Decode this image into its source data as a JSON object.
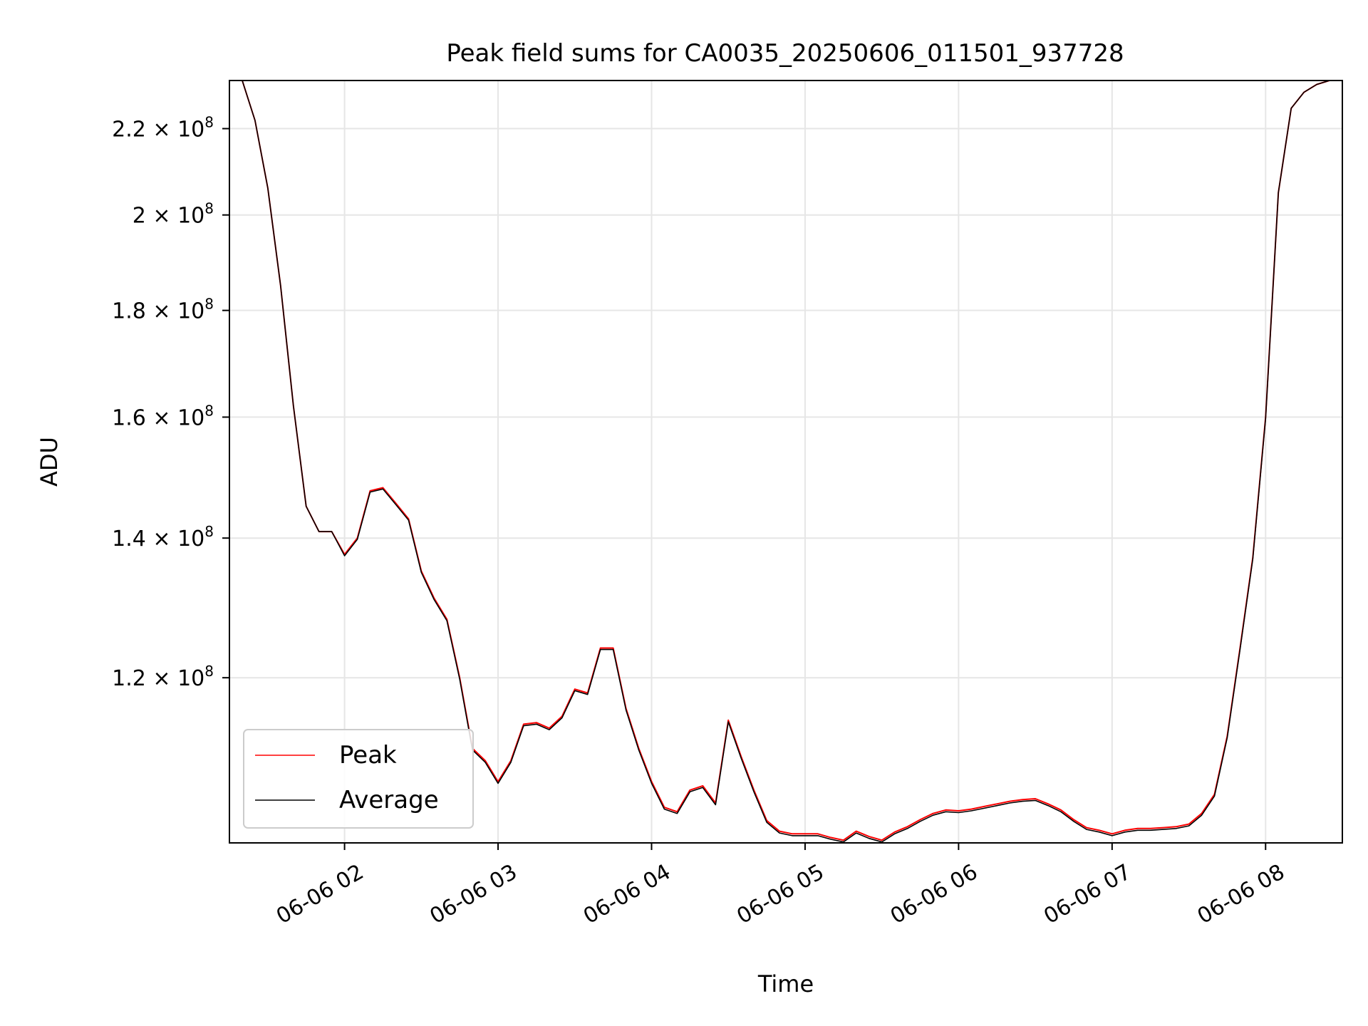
{
  "chart_data": {
    "type": "line",
    "title": "Peak field sums for CA0035_20250606_011501_937728",
    "xlabel": "Time",
    "ylabel": "ADU",
    "x_axis": "datetime",
    "xlim": [
      "2025-06-06T01:15:00",
      "2025-06-06T08:30:00"
    ],
    "ylim": [
      100000000,
      232000000
    ],
    "yscale": "log",
    "grid": true,
    "legend_position": "lower-left",
    "x_ticks": [
      {
        "value": "2025-06-06T02:00:00",
        "label": "06-06 02"
      },
      {
        "value": "2025-06-06T03:00:00",
        "label": "06-06 03"
      },
      {
        "value": "2025-06-06T04:00:00",
        "label": "06-06 04"
      },
      {
        "value": "2025-06-06T05:00:00",
        "label": "06-06 05"
      },
      {
        "value": "2025-06-06T06:00:00",
        "label": "06-06 06"
      },
      {
        "value": "2025-06-06T07:00:00",
        "label": "06-06 07"
      },
      {
        "value": "2025-06-06T08:00:00",
        "label": "06-06 08"
      }
    ],
    "y_ticks": [
      {
        "value": 120000000,
        "mantissa": "1.2",
        "exp": "8"
      },
      {
        "value": 140000000,
        "mantissa": "1.4",
        "exp": "8"
      },
      {
        "value": 160000000,
        "mantissa": "1.6",
        "exp": "8"
      },
      {
        "value": 180000000,
        "mantissa": "1.8",
        "exp": "8"
      },
      {
        "value": 200000000,
        "mantissa": "2",
        "exp": "8"
      },
      {
        "value": 220000000,
        "mantissa": "2.2",
        "exp": "8"
      }
    ],
    "series": [
      {
        "name": "Peak",
        "color": "#ff0000",
        "x": [
          "2025-06-06T01:15:00",
          "2025-06-06T01:20:00",
          "2025-06-06T01:25:00",
          "2025-06-06T01:30:00",
          "2025-06-06T01:35:00",
          "2025-06-06T01:40:00",
          "2025-06-06T01:45:00",
          "2025-06-06T01:50:00",
          "2025-06-06T01:55:00",
          "2025-06-06T02:00:00",
          "2025-06-06T02:05:00",
          "2025-06-06T02:10:00",
          "2025-06-06T02:15:00",
          "2025-06-06T02:20:00",
          "2025-06-06T02:25:00",
          "2025-06-06T02:30:00",
          "2025-06-06T02:35:00",
          "2025-06-06T02:40:00",
          "2025-06-06T02:45:00",
          "2025-06-06T02:50:00",
          "2025-06-06T02:55:00",
          "2025-06-06T03:00:00",
          "2025-06-06T03:05:00",
          "2025-06-06T03:10:00",
          "2025-06-06T03:15:00",
          "2025-06-06T03:20:00",
          "2025-06-06T03:25:00",
          "2025-06-06T03:30:00",
          "2025-06-06T03:35:00",
          "2025-06-06T03:40:00",
          "2025-06-06T03:45:00",
          "2025-06-06T03:50:00",
          "2025-06-06T03:55:00",
          "2025-06-06T04:00:00",
          "2025-06-06T04:05:00",
          "2025-06-06T04:10:00",
          "2025-06-06T04:15:00",
          "2025-06-06T04:20:00",
          "2025-06-06T04:25:00",
          "2025-06-06T04:30:00",
          "2025-06-06T04:35:00",
          "2025-06-06T04:40:00",
          "2025-06-06T04:45:00",
          "2025-06-06T04:50:00",
          "2025-06-06T04:55:00",
          "2025-06-06T05:00:00",
          "2025-06-06T05:05:00",
          "2025-06-06T05:10:00",
          "2025-06-06T05:15:00",
          "2025-06-06T05:20:00",
          "2025-06-06T05:25:00",
          "2025-06-06T05:30:00",
          "2025-06-06T05:35:00",
          "2025-06-06T05:40:00",
          "2025-06-06T05:45:00",
          "2025-06-06T05:50:00",
          "2025-06-06T05:55:00",
          "2025-06-06T06:00:00",
          "2025-06-06T06:05:00",
          "2025-06-06T06:10:00",
          "2025-06-06T06:15:00",
          "2025-06-06T06:20:00",
          "2025-06-06T06:25:00",
          "2025-06-06T06:30:00",
          "2025-06-06T06:35:00",
          "2025-06-06T06:40:00",
          "2025-06-06T06:45:00",
          "2025-06-06T06:50:00",
          "2025-06-06T06:55:00",
          "2025-06-06T07:00:00",
          "2025-06-06T07:05:00",
          "2025-06-06T07:10:00",
          "2025-06-06T07:15:00",
          "2025-06-06T07:20:00",
          "2025-06-06T07:25:00",
          "2025-06-06T07:30:00",
          "2025-06-06T07:35:00",
          "2025-06-06T07:40:00",
          "2025-06-06T07:45:00",
          "2025-06-06T07:50:00",
          "2025-06-06T07:55:00",
          "2025-06-06T08:00:00",
          "2025-06-06T08:05:00",
          "2025-06-06T08:10:00",
          "2025-06-06T08:15:00",
          "2025-06-06T08:20:00",
          "2025-06-06T08:25:00",
          "2025-06-06T08:30:00"
        ],
        "values": [
          232000000,
          232000000,
          222000000,
          206000000,
          185000000,
          162000000,
          145000000,
          141000000,
          141000000,
          137500000,
          140000000,
          147500000,
          148000000,
          145500000,
          143000000,
          135000000,
          131000000,
          128000000,
          120000000,
          111000000,
          109500000,
          107000000,
          109500000,
          114000000,
          114200000,
          113500000,
          115000000,
          118500000,
          118000000,
          124000000,
          124000000,
          116000000,
          111000000,
          107000000,
          104000000,
          103500000,
          106000000,
          106500000,
          104500000,
          114500000,
          110000000,
          106000000,
          102500000,
          101300000,
          101000000,
          101000000,
          101000000,
          100600000,
          100300000,
          101300000,
          100700000,
          100300000,
          101200000,
          101800000,
          102600000,
          103300000,
          103700000,
          103600000,
          103800000,
          104100000,
          104400000,
          104700000,
          104900000,
          105000000,
          104400000,
          103700000,
          102600000,
          101700000,
          101400000,
          101000000,
          101400000,
          101600000,
          101600000,
          101700000,
          101800000,
          102100000,
          103300000,
          105500000,
          112500000,
          124000000,
          137000000,
          160000000,
          205000000,
          225000000,
          229000000,
          231000000,
          232000000,
          232000000
        ]
      },
      {
        "name": "Average",
        "color": "#000000",
        "x": [
          "2025-06-06T01:15:00",
          "2025-06-06T01:20:00",
          "2025-06-06T01:25:00",
          "2025-06-06T01:30:00",
          "2025-06-06T01:35:00",
          "2025-06-06T01:40:00",
          "2025-06-06T01:45:00",
          "2025-06-06T01:50:00",
          "2025-06-06T01:55:00",
          "2025-06-06T02:00:00",
          "2025-06-06T02:05:00",
          "2025-06-06T02:10:00",
          "2025-06-06T02:15:00",
          "2025-06-06T02:20:00",
          "2025-06-06T02:25:00",
          "2025-06-06T02:30:00",
          "2025-06-06T02:35:00",
          "2025-06-06T02:40:00",
          "2025-06-06T02:45:00",
          "2025-06-06T02:50:00",
          "2025-06-06T02:55:00",
          "2025-06-06T03:00:00",
          "2025-06-06T03:05:00",
          "2025-06-06T03:10:00",
          "2025-06-06T03:15:00",
          "2025-06-06T03:20:00",
          "2025-06-06T03:25:00",
          "2025-06-06T03:30:00",
          "2025-06-06T03:35:00",
          "2025-06-06T03:40:00",
          "2025-06-06T03:45:00",
          "2025-06-06T03:50:00",
          "2025-06-06T03:55:00",
          "2025-06-06T04:00:00",
          "2025-06-06T04:05:00",
          "2025-06-06T04:10:00",
          "2025-06-06T04:15:00",
          "2025-06-06T04:20:00",
          "2025-06-06T04:25:00",
          "2025-06-06T04:30:00",
          "2025-06-06T04:35:00",
          "2025-06-06T04:40:00",
          "2025-06-06T04:45:00",
          "2025-06-06T04:50:00",
          "2025-06-06T04:55:00",
          "2025-06-06T05:00:00",
          "2025-06-06T05:05:00",
          "2025-06-06T05:10:00",
          "2025-06-06T05:15:00",
          "2025-06-06T05:20:00",
          "2025-06-06T05:25:00",
          "2025-06-06T05:30:00",
          "2025-06-06T05:35:00",
          "2025-06-06T05:40:00",
          "2025-06-06T05:45:00",
          "2025-06-06T05:50:00",
          "2025-06-06T05:55:00",
          "2025-06-06T06:00:00",
          "2025-06-06T06:05:00",
          "2025-06-06T06:10:00",
          "2025-06-06T06:15:00",
          "2025-06-06T06:20:00",
          "2025-06-06T06:25:00",
          "2025-06-06T06:30:00",
          "2025-06-06T06:35:00",
          "2025-06-06T06:40:00",
          "2025-06-06T06:45:00",
          "2025-06-06T06:50:00",
          "2025-06-06T06:55:00",
          "2025-06-06T07:00:00",
          "2025-06-06T07:05:00",
          "2025-06-06T07:10:00",
          "2025-06-06T07:15:00",
          "2025-06-06T07:20:00",
          "2025-06-06T07:25:00",
          "2025-06-06T07:30:00",
          "2025-06-06T07:35:00",
          "2025-06-06T07:40:00",
          "2025-06-06T07:45:00",
          "2025-06-06T07:50:00",
          "2025-06-06T07:55:00",
          "2025-06-06T08:00:00",
          "2025-06-06T08:05:00",
          "2025-06-06T08:10:00",
          "2025-06-06T08:15:00",
          "2025-06-06T08:20:00",
          "2025-06-06T08:25:00",
          "2025-06-06T08:30:00"
        ],
        "values": [
          232000000,
          232000000,
          222000000,
          206000000,
          185000000,
          162000000,
          145000000,
          141000000,
          141000000,
          137300000,
          139800000,
          147300000,
          147800000,
          145300000,
          142800000,
          134800000,
          130800000,
          127800000,
          119800000,
          110800000,
          109300000,
          106800000,
          109300000,
          113800000,
          114000000,
          113300000,
          114800000,
          118300000,
          117800000,
          123800000,
          123800000,
          115800000,
          110800000,
          106800000,
          103800000,
          103300000,
          105800000,
          106300000,
          104300000,
          114300000,
          109800000,
          105800000,
          102300000,
          101100000,
          100800000,
          100800000,
          100800000,
          100400000,
          100100000,
          101100000,
          100500000,
          100100000,
          101000000,
          101600000,
          102400000,
          103100000,
          103500000,
          103400000,
          103600000,
          103900000,
          104200000,
          104500000,
          104700000,
          104800000,
          104200000,
          103500000,
          102400000,
          101500000,
          101200000,
          100800000,
          101200000,
          101400000,
          101400000,
          101500000,
          101600000,
          101900000,
          103100000,
          105300000,
          112300000,
          123800000,
          136800000,
          159800000,
          205000000,
          225000000,
          229000000,
          231000000,
          232000000,
          232000000
        ]
      }
    ]
  }
}
